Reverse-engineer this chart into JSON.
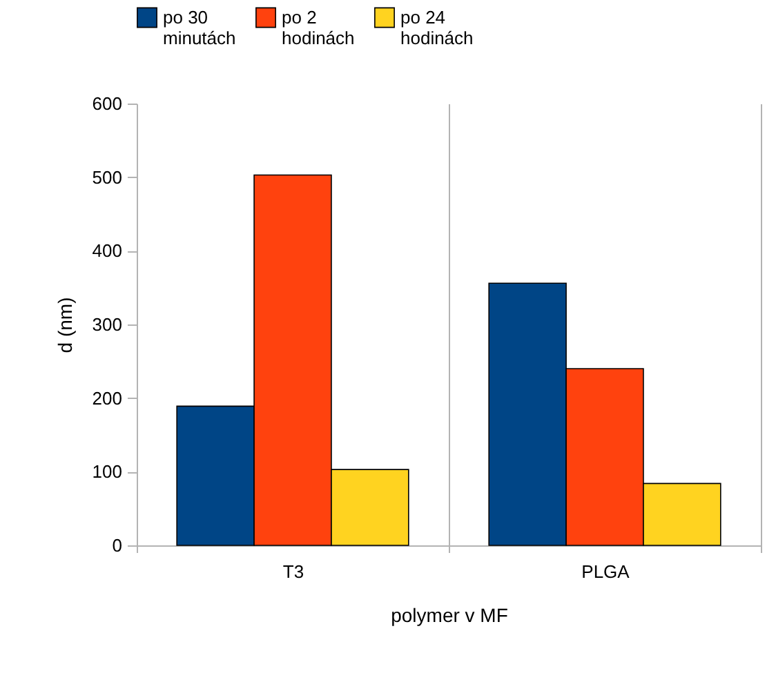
{
  "chart_data": {
    "type": "bar",
    "xlabel": "polymer v MF",
    "ylabel": "d (nm)",
    "categories": [
      "T3",
      "PLGA"
    ],
    "series": [
      {
        "name": "po 30 minutách",
        "color": "#004586",
        "values": [
          189,
          356
        ]
      },
      {
        "name": "po 2 hodinách",
        "color": "#ff420e",
        "values": [
          503,
          240
        ]
      },
      {
        "name": "po 24 hodinách",
        "color": "#ffd320",
        "values": [
          103,
          84
        ]
      }
    ],
    "ylim": [
      0,
      600
    ],
    "yticks": [
      0,
      100,
      200,
      300,
      400,
      500,
      600
    ],
    "grid": "x",
    "legend": "top"
  }
}
